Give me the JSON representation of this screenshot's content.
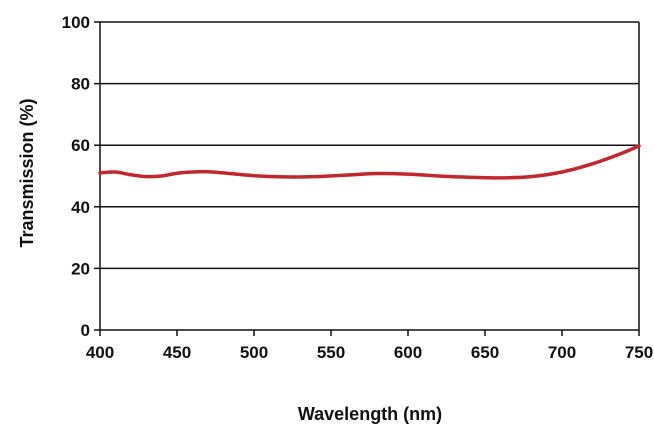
{
  "chart_data": {
    "type": "line",
    "title": "",
    "xlabel": "Wavelength (nm)",
    "ylabel": "Transmission (%)",
    "xlim": [
      400,
      750
    ],
    "ylim": [
      0,
      100
    ],
    "x_ticks": [
      400,
      450,
      500,
      550,
      600,
      650,
      700,
      750
    ],
    "x_tick_labels": [
      "400",
      "450",
      "500",
      "550",
      "600",
      "650",
      "700",
      "750"
    ],
    "y_ticks": [
      0,
      20,
      40,
      60,
      80,
      100
    ],
    "y_tick_labels": [
      "0",
      "20",
      "40",
      "60",
      "80",
      "100"
    ],
    "grid": "horizontal",
    "legend": "none",
    "series": [
      {
        "color": "#c0282d",
        "x": [
          400,
          410,
          420,
          430,
          440,
          450,
          460,
          470,
          480,
          500,
          520,
          540,
          560,
          580,
          600,
          620,
          640,
          660,
          680,
          700,
          720,
          740,
          750
        ],
        "y": [
          51,
          51.3,
          50.4,
          49.8,
          50.0,
          50.9,
          51.3,
          51.4,
          51.0,
          50.1,
          49.7,
          49.8,
          50.3,
          50.8,
          50.6,
          50.0,
          49.6,
          49.4,
          49.8,
          51.3,
          54.0,
          57.6,
          59.8
        ]
      }
    ]
  }
}
